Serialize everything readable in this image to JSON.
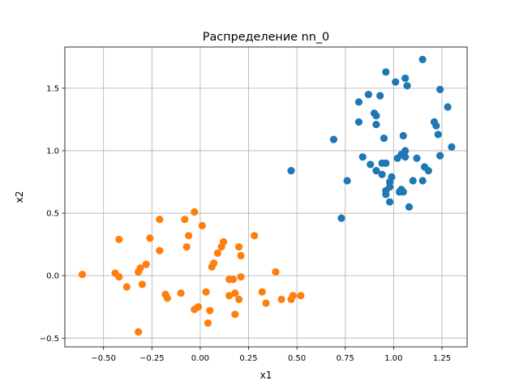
{
  "chart_data": {
    "type": "scatter",
    "title": "Распределение nn_0",
    "xlabel": "x1",
    "ylabel": "x2",
    "xlim": [
      -0.7,
      1.38
    ],
    "ylim": [
      -0.57,
      1.83
    ],
    "grid": true,
    "xticks": [
      -0.5,
      -0.25,
      0.0,
      0.25,
      0.5,
      0.75,
      1.0,
      1.25
    ],
    "xtick_labels": [
      "−0.50",
      "−0.25",
      "0.00",
      "0.25",
      "0.50",
      "0.75",
      "1.00",
      "1.25"
    ],
    "yticks": [
      -0.5,
      0.0,
      0.5,
      1.0,
      1.5
    ],
    "ytick_labels": [
      "−0.5",
      "0.0",
      "0.5",
      "1.0",
      "1.5"
    ],
    "series": [
      {
        "color": "#1f77b4",
        "points": [
          [
            0.96,
            1.63
          ],
          [
            1.15,
            1.73
          ],
          [
            1.01,
            1.55
          ],
          [
            1.06,
            1.58
          ],
          [
            1.07,
            1.52
          ],
          [
            1.24,
            1.49
          ],
          [
            0.87,
            1.45
          ],
          [
            0.93,
            1.44
          ],
          [
            0.82,
            1.39
          ],
          [
            1.28,
            1.35
          ],
          [
            0.9,
            1.3
          ],
          [
            0.91,
            1.28
          ],
          [
            0.82,
            1.23
          ],
          [
            1.21,
            1.23
          ],
          [
            0.91,
            1.21
          ],
          [
            1.22,
            1.2
          ],
          [
            1.23,
            1.13
          ],
          [
            1.05,
            1.12
          ],
          [
            0.95,
            1.1
          ],
          [
            0.69,
            1.09
          ],
          [
            1.3,
            1.03
          ],
          [
            1.06,
            1.0
          ],
          [
            1.04,
            0.97
          ],
          [
            1.24,
            0.96
          ],
          [
            0.84,
            0.95
          ],
          [
            1.02,
            0.94
          ],
          [
            1.06,
            0.95
          ],
          [
            1.12,
            0.94
          ],
          [
            0.94,
            0.9
          ],
          [
            0.96,
            0.9
          ],
          [
            0.88,
            0.89
          ],
          [
            1.16,
            0.87
          ],
          [
            1.18,
            0.84
          ],
          [
            0.91,
            0.84
          ],
          [
            0.47,
            0.84
          ],
          [
            0.94,
            0.81
          ],
          [
            0.99,
            0.79
          ],
          [
            0.76,
            0.76
          ],
          [
            0.98,
            0.75
          ],
          [
            1.1,
            0.76
          ],
          [
            1.15,
            0.76
          ],
          [
            0.98,
            0.71
          ],
          [
            1.04,
            0.69
          ],
          [
            1.05,
            0.67
          ],
          [
            1.03,
            0.67
          ],
          [
            0.96,
            0.68
          ],
          [
            0.96,
            0.65
          ],
          [
            0.98,
            0.59
          ],
          [
            1.08,
            0.55
          ],
          [
            0.73,
            0.46
          ]
        ]
      },
      {
        "color": "#ff7f0e",
        "points": [
          [
            -0.03,
            0.51
          ],
          [
            -0.08,
            0.45
          ],
          [
            -0.21,
            0.45
          ],
          [
            0.01,
            0.4
          ],
          [
            -0.42,
            0.29
          ],
          [
            -0.26,
            0.3
          ],
          [
            0.28,
            0.32
          ],
          [
            -0.06,
            0.32
          ],
          [
            0.12,
            0.27
          ],
          [
            0.11,
            0.23
          ],
          [
            -0.07,
            0.23
          ],
          [
            0.2,
            0.23
          ],
          [
            -0.21,
            0.2
          ],
          [
            0.09,
            0.18
          ],
          [
            0.21,
            0.16
          ],
          [
            0.07,
            0.1
          ],
          [
            0.06,
            0.07
          ],
          [
            -0.28,
            0.09
          ],
          [
            -0.31,
            0.06
          ],
          [
            -0.32,
            0.03
          ],
          [
            0.39,
            0.03
          ],
          [
            -0.44,
            0.02
          ],
          [
            -0.61,
            0.01
          ],
          [
            -0.42,
            -0.01
          ],
          [
            0.21,
            -0.01
          ],
          [
            0.15,
            -0.03
          ],
          [
            0.17,
            -0.03
          ],
          [
            -0.3,
            -0.07
          ],
          [
            -0.38,
            -0.09
          ],
          [
            0.03,
            -0.13
          ],
          [
            0.32,
            -0.13
          ],
          [
            -0.1,
            -0.14
          ],
          [
            0.18,
            -0.14
          ],
          [
            -0.18,
            -0.15
          ],
          [
            0.15,
            -0.16
          ],
          [
            0.48,
            -0.16
          ],
          [
            0.52,
            -0.16
          ],
          [
            -0.17,
            -0.18
          ],
          [
            0.42,
            -0.19
          ],
          [
            0.2,
            -0.19
          ],
          [
            0.47,
            -0.19
          ],
          [
            0.34,
            -0.22
          ],
          [
            -0.01,
            -0.25
          ],
          [
            -0.03,
            -0.27
          ],
          [
            0.05,
            -0.28
          ],
          [
            0.18,
            -0.31
          ],
          [
            0.04,
            -0.38
          ],
          [
            -0.32,
            -0.45
          ]
        ]
      }
    ]
  }
}
